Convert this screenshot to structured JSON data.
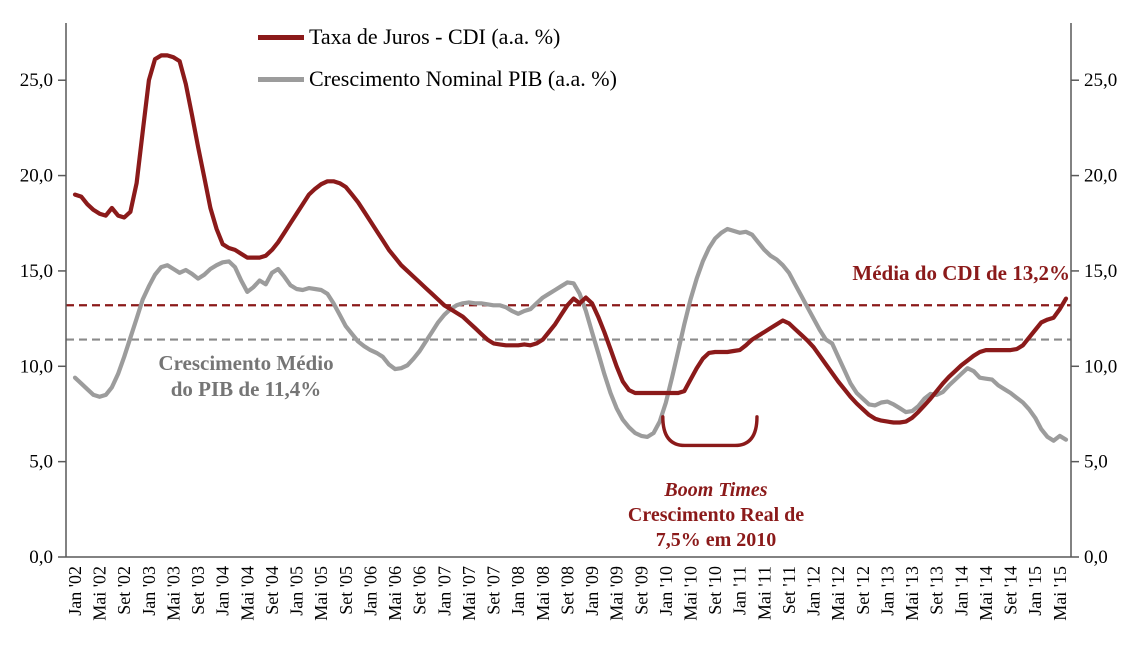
{
  "chart_data": {
    "type": "line",
    "title": "",
    "x_tick_labels": [
      "Jan '02",
      "Mai '02",
      "Set '02",
      "Jan '03",
      "Mai '03",
      "Set '03",
      "Jan '04",
      "Mai '04",
      "Set '04",
      "Jan '05",
      "Mai '05",
      "Set '05",
      "Jan '06",
      "Mai '06",
      "Set '06",
      "Jan '07",
      "Mai '07",
      "Set '07",
      "Jan '08",
      "Mai '08",
      "Set '08",
      "Jan '09",
      "Mai '09",
      "Set '09",
      "Jan '10",
      "Mai '10",
      "Set '10",
      "Jan '11",
      "Mai '11",
      "Set '11",
      "Jan '12",
      "Mai '12",
      "Set '12",
      "Jan '13",
      "Mai '13",
      "Set '13",
      "Jan '14",
      "Mai '14",
      "Set '14",
      "Jan '15",
      "Mai '15"
    ],
    "x_label_every_n_months": 4,
    "x_range_months": "Jan 2002 - Jun 2015",
    "ylim": [
      0,
      28
    ],
    "yticks": [
      0,
      5,
      10,
      15,
      20,
      25
    ],
    "ytick_labels": [
      "0,0",
      "5,0",
      "10,0",
      "15,0",
      "20,0",
      "25,0"
    ],
    "y_axis_sides": "both",
    "grid": "off",
    "legend_position": "top-center-inside",
    "series": [
      {
        "name": "Taxa de Juros - CDI (a.a. %)",
        "color": "#8B1A1A",
        "values": [
          19.0,
          18.9,
          18.5,
          18.2,
          18.0,
          17.9,
          18.3,
          17.9,
          17.8,
          18.1,
          19.6,
          22.3,
          25.0,
          26.1,
          26.3,
          26.3,
          26.2,
          26.0,
          24.8,
          23.2,
          21.5,
          19.9,
          18.3,
          17.2,
          16.4,
          16.2,
          16.1,
          15.9,
          15.7,
          15.7,
          15.7,
          15.8,
          16.1,
          16.5,
          17.0,
          17.5,
          18.0,
          18.5,
          19.0,
          19.3,
          19.55,
          19.7,
          19.7,
          19.6,
          19.4,
          19.0,
          18.6,
          18.1,
          17.6,
          17.1,
          16.6,
          16.1,
          15.7,
          15.3,
          15.0,
          14.7,
          14.4,
          14.1,
          13.8,
          13.5,
          13.2,
          13.0,
          12.8,
          12.6,
          12.3,
          12.0,
          11.7,
          11.4,
          11.2,
          11.15,
          11.1,
          11.1,
          11.1,
          11.15,
          11.1,
          11.2,
          11.4,
          11.8,
          12.2,
          12.7,
          13.2,
          13.55,
          13.3,
          13.6,
          13.3,
          12.6,
          11.8,
          10.9,
          10.0,
          9.2,
          8.75,
          8.6,
          8.6,
          8.6,
          8.6,
          8.6,
          8.6,
          8.6,
          8.6,
          8.7,
          9.3,
          9.9,
          10.4,
          10.7,
          10.75,
          10.75,
          10.75,
          10.8,
          10.85,
          11.1,
          11.4,
          11.6,
          11.8,
          12.0,
          12.2,
          12.4,
          12.25,
          11.95,
          11.65,
          11.35,
          11.0,
          10.55,
          10.1,
          9.65,
          9.2,
          8.8,
          8.4,
          8.05,
          7.75,
          7.45,
          7.25,
          7.15,
          7.1,
          7.05,
          7.05,
          7.1,
          7.3,
          7.6,
          7.95,
          8.3,
          8.7,
          9.1,
          9.45,
          9.75,
          10.05,
          10.3,
          10.55,
          10.75,
          10.85,
          10.85,
          10.85,
          10.85,
          10.85,
          10.9,
          11.1,
          11.5,
          11.9,
          12.3,
          12.45,
          12.55,
          13.0,
          13.55
        ]
      },
      {
        "name": "Crescimento Nominal PIB (a.a. %)",
        "color": "#9C9C9C",
        "values": [
          9.4,
          9.1,
          8.8,
          8.5,
          8.4,
          8.5,
          8.9,
          9.6,
          10.5,
          11.5,
          12.5,
          13.5,
          14.2,
          14.8,
          15.2,
          15.3,
          15.1,
          14.9,
          15.05,
          14.85,
          14.6,
          14.8,
          15.1,
          15.3,
          15.45,
          15.5,
          15.2,
          14.5,
          13.9,
          14.15,
          14.5,
          14.3,
          14.9,
          15.1,
          14.7,
          14.25,
          14.05,
          14.0,
          14.1,
          14.05,
          14.0,
          13.8,
          13.3,
          12.7,
          12.1,
          11.7,
          11.3,
          11.05,
          10.85,
          10.7,
          10.5,
          10.1,
          9.85,
          9.9,
          10.05,
          10.4,
          10.8,
          11.3,
          11.8,
          12.3,
          12.7,
          13.0,
          13.2,
          13.3,
          13.35,
          13.3,
          13.3,
          13.25,
          13.2,
          13.2,
          13.1,
          12.9,
          12.75,
          12.9,
          13.0,
          13.3,
          13.6,
          13.8,
          14.0,
          14.2,
          14.4,
          14.35,
          13.8,
          12.9,
          11.8,
          10.7,
          9.6,
          8.6,
          7.8,
          7.2,
          6.8,
          6.5,
          6.35,
          6.3,
          6.5,
          7.1,
          8.1,
          9.4,
          10.8,
          12.2,
          13.5,
          14.6,
          15.5,
          16.2,
          16.7,
          17.0,
          17.2,
          17.1,
          17.0,
          17.05,
          16.9,
          16.5,
          16.1,
          15.8,
          15.6,
          15.3,
          14.9,
          14.3,
          13.7,
          13.1,
          12.5,
          11.9,
          11.4,
          11.2,
          10.5,
          9.8,
          9.1,
          8.6,
          8.3,
          8.0,
          7.95,
          8.1,
          8.15,
          8.0,
          7.8,
          7.6,
          7.65,
          7.9,
          8.3,
          8.55,
          8.5,
          8.65,
          9.0,
          9.3,
          9.6,
          9.9,
          9.75,
          9.4,
          9.35,
          9.3,
          9.0,
          8.8,
          8.6,
          8.35,
          8.1,
          7.75,
          7.3,
          6.7,
          6.3,
          6.1,
          6.35,
          6.15
        ]
      }
    ],
    "reference_lines": [
      {
        "label": "Média do CDI de 13,2%",
        "value": 13.2,
        "color": "#8B1A1A"
      },
      {
        "label": "Crescimento Médio do PIB de 11,4%",
        "value": 11.4,
        "color": "#8A8A8A"
      }
    ],
    "bracket": {
      "meaning": "Boom Times period marker",
      "start_index": 95.5,
      "end_index": 110.8,
      "top_value": 7.35,
      "bottom_value": 5.85,
      "color": "#8B1A1A"
    },
    "annotations": [
      {
        "id": "cdi-mean",
        "text": "Média do CDI de 13,2%",
        "color": "#8B1A1A"
      },
      {
        "id": "pib-mean",
        "lines": [
          "Crescimento Médio",
          "do PIB de 11,4%"
        ],
        "color": "#757575"
      },
      {
        "id": "boom",
        "lines": [
          "Boom Times",
          "Crescimento Real de",
          "7,5% em 2010"
        ],
        "color": "#8B1A1A"
      }
    ]
  },
  "legend": {
    "items": [
      {
        "label": "Taxa de Juros - CDI (a.a. %)",
        "color": "#8B1A1A"
      },
      {
        "label": "Crescimento Nominal PIB (a.a. %)",
        "color": "#9C9C9C"
      }
    ]
  }
}
